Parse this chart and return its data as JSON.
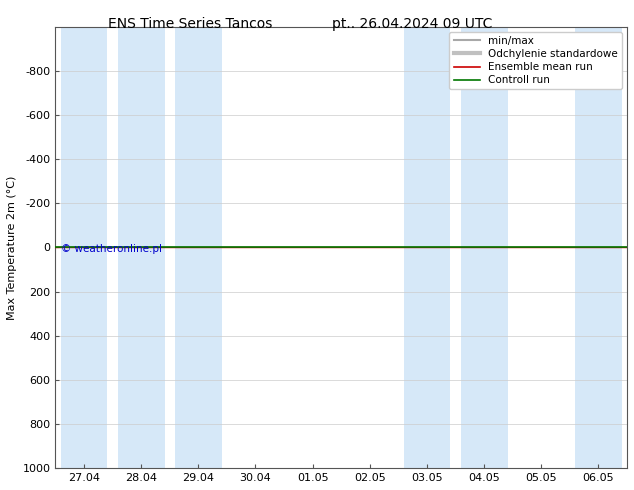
{
  "title_left": "ENS Time Series Tancos",
  "title_right": "pt.. 26.04.2024 09 UTC",
  "ylabel": "Max Temperature 2m (°C)",
  "ylim": [
    -1000,
    1000
  ],
  "yticks": [
    -800,
    -600,
    -400,
    -200,
    0,
    200,
    400,
    600,
    800,
    1000
  ],
  "ytick_labels": [
    "-800",
    "-600",
    "-400",
    "-200",
    "0",
    "200",
    "400",
    "600",
    "800",
    "1000"
  ],
  "xtick_labels": [
    "27.04",
    "28.04",
    "29.04",
    "30.04",
    "01.05",
    "02.05",
    "03.05",
    "04.05",
    "05.05",
    "06.05"
  ],
  "bg_color": "#ffffff",
  "plot_bg_color": "#ffffff",
  "shaded_indices": [
    0,
    1,
    2,
    6,
    7,
    9
  ],
  "shaded_color": "#d6e8f8",
  "green_line_color": "#007700",
  "red_line_color": "#cc0000",
  "copyright_text": "© weatheronline.pl",
  "copyright_color": "#0000cc",
  "legend_entries": [
    "min/max",
    "Odchylenie standardowe",
    "Ensemble mean run",
    "Controll run"
  ],
  "legend_line_colors": [
    "#a8a8a8",
    "#c0c0c0",
    "#cc0000",
    "#007700"
  ],
  "title_fontsize": 10,
  "axis_fontsize": 8,
  "tick_fontsize": 8,
  "legend_fontsize": 7.5
}
